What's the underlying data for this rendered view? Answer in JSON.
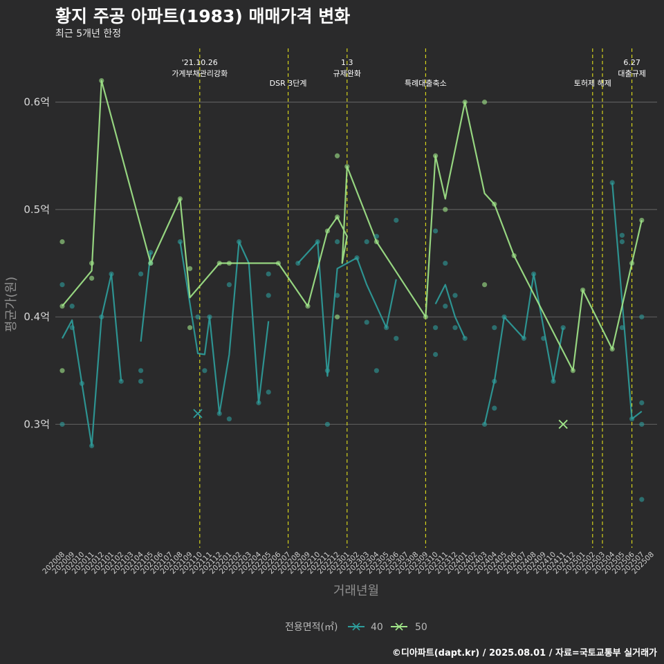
{
  "header": {
    "title": "황지 주공 아파트(1983) 매매가격 변화",
    "subtitle": "최근 5개년 한정"
  },
  "footer": {
    "caption": "©디아파트(dapt.kr) / 2025.08.01 / 자료=국토교통부 실거래가"
  },
  "colors": {
    "series_40": "#2e9e9c",
    "series_50": "#a2e88a",
    "event_line": "#e3e11a"
  },
  "chart_data": {
    "type": "line",
    "xlabel": "거래년월",
    "ylabel": "평균가(원)",
    "ylim": [
      0.185,
      0.65
    ],
    "yticks": [
      {
        "value": 0.3,
        "label": "0.3억"
      },
      {
        "value": 0.4,
        "label": "0.4억"
      },
      {
        "value": 0.5,
        "label": "0.5억"
      },
      {
        "value": 0.6,
        "label": "0.6억"
      }
    ],
    "categories": [
      "202008",
      "202009",
      "202010",
      "202011",
      "202012",
      "202101",
      "202102",
      "202103",
      "202104",
      "202105",
      "202106",
      "202107",
      "202108",
      "202109",
      "202110",
      "202111",
      "202112",
      "202201",
      "202202",
      "202203",
      "202204",
      "202205",
      "202206",
      "202207",
      "202208",
      "202209",
      "202210",
      "202211",
      "202212",
      "202301",
      "202302",
      "202303",
      "202304",
      "202305",
      "202306",
      "202307",
      "202308",
      "202309",
      "202310",
      "202311",
      "202312",
      "202401",
      "202402",
      "202403",
      "202404",
      "202405",
      "202406",
      "202407",
      "202408",
      "202409",
      "202410",
      "202411",
      "202412",
      "202501",
      "202502",
      "202503",
      "202504",
      "202505",
      "202506",
      "202507",
      "202508"
    ],
    "grid": true,
    "legend": {
      "title": "전용면적(㎡)",
      "position": "bottom",
      "items": [
        {
          "label": "40",
          "color": "#2e9e9c"
        },
        {
          "label": "50",
          "color": "#a2e88a"
        }
      ]
    },
    "annotations": [
      {
        "x": 14.0,
        "lines": [
          "'21.10.26",
          "가계부채관리강화"
        ]
      },
      {
        "x": 23.0,
        "lines": [
          "DSR 3단계"
        ]
      },
      {
        "x": 29.0,
        "lines": [
          "1.3",
          "규제완화"
        ]
      },
      {
        "x": 37.0,
        "lines": [
          "특례대출축소"
        ]
      },
      {
        "x": 54.0,
        "lines": [
          "토허제 해제"
        ]
      },
      {
        "x": 55.0,
        "lines": [
          ""
        ]
      },
      {
        "x": 58.0,
        "lines": [
          "6.27",
          "대출규제"
        ]
      }
    ],
    "series": [
      {
        "name": "40",
        "color": "#2e9e9c",
        "line_segments": [
          [
            [
              0,
              0.38
            ],
            [
              1,
              0.397
            ],
            [
              2,
              0.338
            ],
            [
              3,
              0.28
            ],
            [
              4,
              0.4
            ],
            [
              5,
              0.44
            ],
            [
              6,
              0.34
            ]
          ],
          [
            [
              8,
              0.377
            ],
            [
              9,
              0.46
            ]
          ],
          [
            [
              12,
              0.47
            ],
            [
              13.8,
              0.366
            ],
            [
              14.5,
              0.365
            ],
            [
              15,
              0.4
            ],
            [
              16,
              0.31
            ],
            [
              17,
              0.365
            ],
            [
              18,
              0.47
            ],
            [
              19,
              0.45
            ],
            [
              20,
              0.32
            ],
            [
              21,
              0.396
            ]
          ],
          [
            [
              24,
              0.45
            ],
            [
              26,
              0.47
            ],
            [
              27,
              0.345
            ],
            [
              28,
              0.445
            ],
            [
              30,
              0.455
            ],
            [
              31,
              0.43
            ],
            [
              32,
              0.41
            ],
            [
              33,
              0.39
            ],
            [
              34,
              0.435
            ]
          ],
          [
            [
              38,
              0.412
            ],
            [
              39,
              0.43
            ],
            [
              40,
              0.4
            ],
            [
              41,
              0.38
            ]
          ],
          [
            [
              43,
              0.3
            ],
            [
              44,
              0.34
            ],
            [
              45,
              0.4
            ],
            [
              47,
              0.38
            ],
            [
              48,
              0.44
            ],
            [
              50,
              0.34
            ],
            [
              51,
              0.39
            ]
          ],
          [
            [
              56,
              0.525
            ],
            [
              58,
              0.305
            ],
            [
              59,
              0.312
            ]
          ]
        ],
        "points": [
          [
            0,
            0.43
          ],
          [
            0,
            0.3
          ],
          [
            1,
            0.41
          ],
          [
            1,
            0.39
          ],
          [
            2,
            0.338
          ],
          [
            3,
            0.28
          ],
          [
            4,
            0.4
          ],
          [
            5,
            0.44
          ],
          [
            6,
            0.34
          ],
          [
            8,
            0.44
          ],
          [
            8,
            0.35
          ],
          [
            8,
            0.34
          ],
          [
            9,
            0.46
          ],
          [
            9,
            0.45
          ],
          [
            12,
            0.47
          ],
          [
            13.8,
            0.4
          ],
          [
            15,
            0.4
          ],
          [
            14.5,
            0.35
          ],
          [
            16,
            0.31
          ],
          [
            17,
            0.305
          ],
          [
            17,
            0.43
          ],
          [
            18,
            0.47
          ],
          [
            20,
            0.32
          ],
          [
            21,
            0.44
          ],
          [
            21,
            0.42
          ],
          [
            21,
            0.33
          ],
          [
            24,
            0.45
          ],
          [
            26,
            0.47
          ],
          [
            27,
            0.3
          ],
          [
            27,
            0.35
          ],
          [
            28,
            0.42
          ],
          [
            28,
            0.47
          ],
          [
            30,
            0.455
          ],
          [
            31,
            0.395
          ],
          [
            32,
            0.475
          ],
          [
            32,
            0.35
          ],
          [
            31,
            0.47
          ],
          [
            33,
            0.39
          ],
          [
            34,
            0.38
          ],
          [
            34,
            0.49
          ],
          [
            38,
            0.48
          ],
          [
            38,
            0.39
          ],
          [
            38,
            0.365
          ],
          [
            39,
            0.45
          ],
          [
            39,
            0.41
          ],
          [
            40,
            0.42
          ],
          [
            40,
            0.39
          ],
          [
            41,
            0.38
          ],
          [
            43,
            0.3
          ],
          [
            44,
            0.34
          ],
          [
            44,
            0.39
          ],
          [
            44,
            0.315
          ],
          [
            45,
            0.4
          ],
          [
            47,
            0.38
          ],
          [
            48,
            0.44
          ],
          [
            49,
            0.38
          ],
          [
            50,
            0.34
          ],
          [
            51,
            0.39
          ],
          [
            56,
            0.525
          ],
          [
            57,
            0.39
          ],
          [
            57,
            0.47
          ],
          [
            57,
            0.476
          ],
          [
            58,
            0.305
          ],
          [
            59,
            0.32
          ],
          [
            59,
            0.4
          ],
          [
            59,
            0.3
          ],
          [
            59,
            0.23
          ]
        ],
        "cross_marks": [
          [
            13.8,
            0.31
          ]
        ]
      },
      {
        "name": "50",
        "color": "#a2e88a",
        "line_segments": [
          [
            [
              0,
              0.41
            ],
            [
              3,
              0.443
            ],
            [
              4,
              0.62
            ],
            [
              9,
              0.45
            ],
            [
              12,
              0.51
            ],
            [
              13,
              0.418
            ],
            [
              16,
              0.45
            ],
            [
              17,
              0.45
            ],
            [
              22,
              0.45
            ],
            [
              25,
              0.41
            ],
            [
              27,
              0.48
            ],
            [
              28,
              0.493
            ],
            [
              29,
              0.475
            ],
            [
              28.5,
              0.45
            ],
            [
              29,
              0.54
            ],
            [
              32,
              0.47
            ],
            [
              37,
              0.4
            ],
            [
              38,
              0.55
            ],
            [
              39,
              0.51
            ],
            [
              39.2,
              0.52
            ],
            [
              41,
              0.6
            ],
            [
              43,
              0.515
            ],
            [
              44,
              0.505
            ],
            [
              46,
              0.457
            ],
            [
              52,
              0.35
            ],
            [
              53,
              0.425
            ],
            [
              56,
              0.37
            ],
            [
              58,
              0.45
            ],
            [
              59,
              0.49
            ]
          ]
        ],
        "points": [
          [
            0,
            0.47
          ],
          [
            0,
            0.35
          ],
          [
            0,
            0.41
          ],
          [
            3,
            0.45
          ],
          [
            3,
            0.436
          ],
          [
            4,
            0.62
          ],
          [
            9,
            0.45
          ],
          [
            12,
            0.51
          ],
          [
            13,
            0.445
          ],
          [
            13,
            0.39
          ],
          [
            16,
            0.45
          ],
          [
            17,
            0.45
          ],
          [
            22,
            0.45
          ],
          [
            25,
            0.41
          ],
          [
            27,
            0.48
          ],
          [
            28,
            0.493
          ],
          [
            28,
            0.4
          ],
          [
            28,
            0.55
          ],
          [
            29,
            0.54
          ],
          [
            32,
            0.47
          ],
          [
            37,
            0.4
          ],
          [
            38,
            0.55
          ],
          [
            39,
            0.5
          ],
          [
            41,
            0.6
          ],
          [
            43,
            0.6
          ],
          [
            43,
            0.43
          ],
          [
            44,
            0.505
          ],
          [
            46,
            0.457
          ],
          [
            52,
            0.35
          ],
          [
            53,
            0.425
          ],
          [
            56,
            0.37
          ],
          [
            58,
            0.45
          ],
          [
            59,
            0.49
          ]
        ],
        "cross_marks": [
          [
            51,
            0.3
          ]
        ]
      }
    ]
  }
}
